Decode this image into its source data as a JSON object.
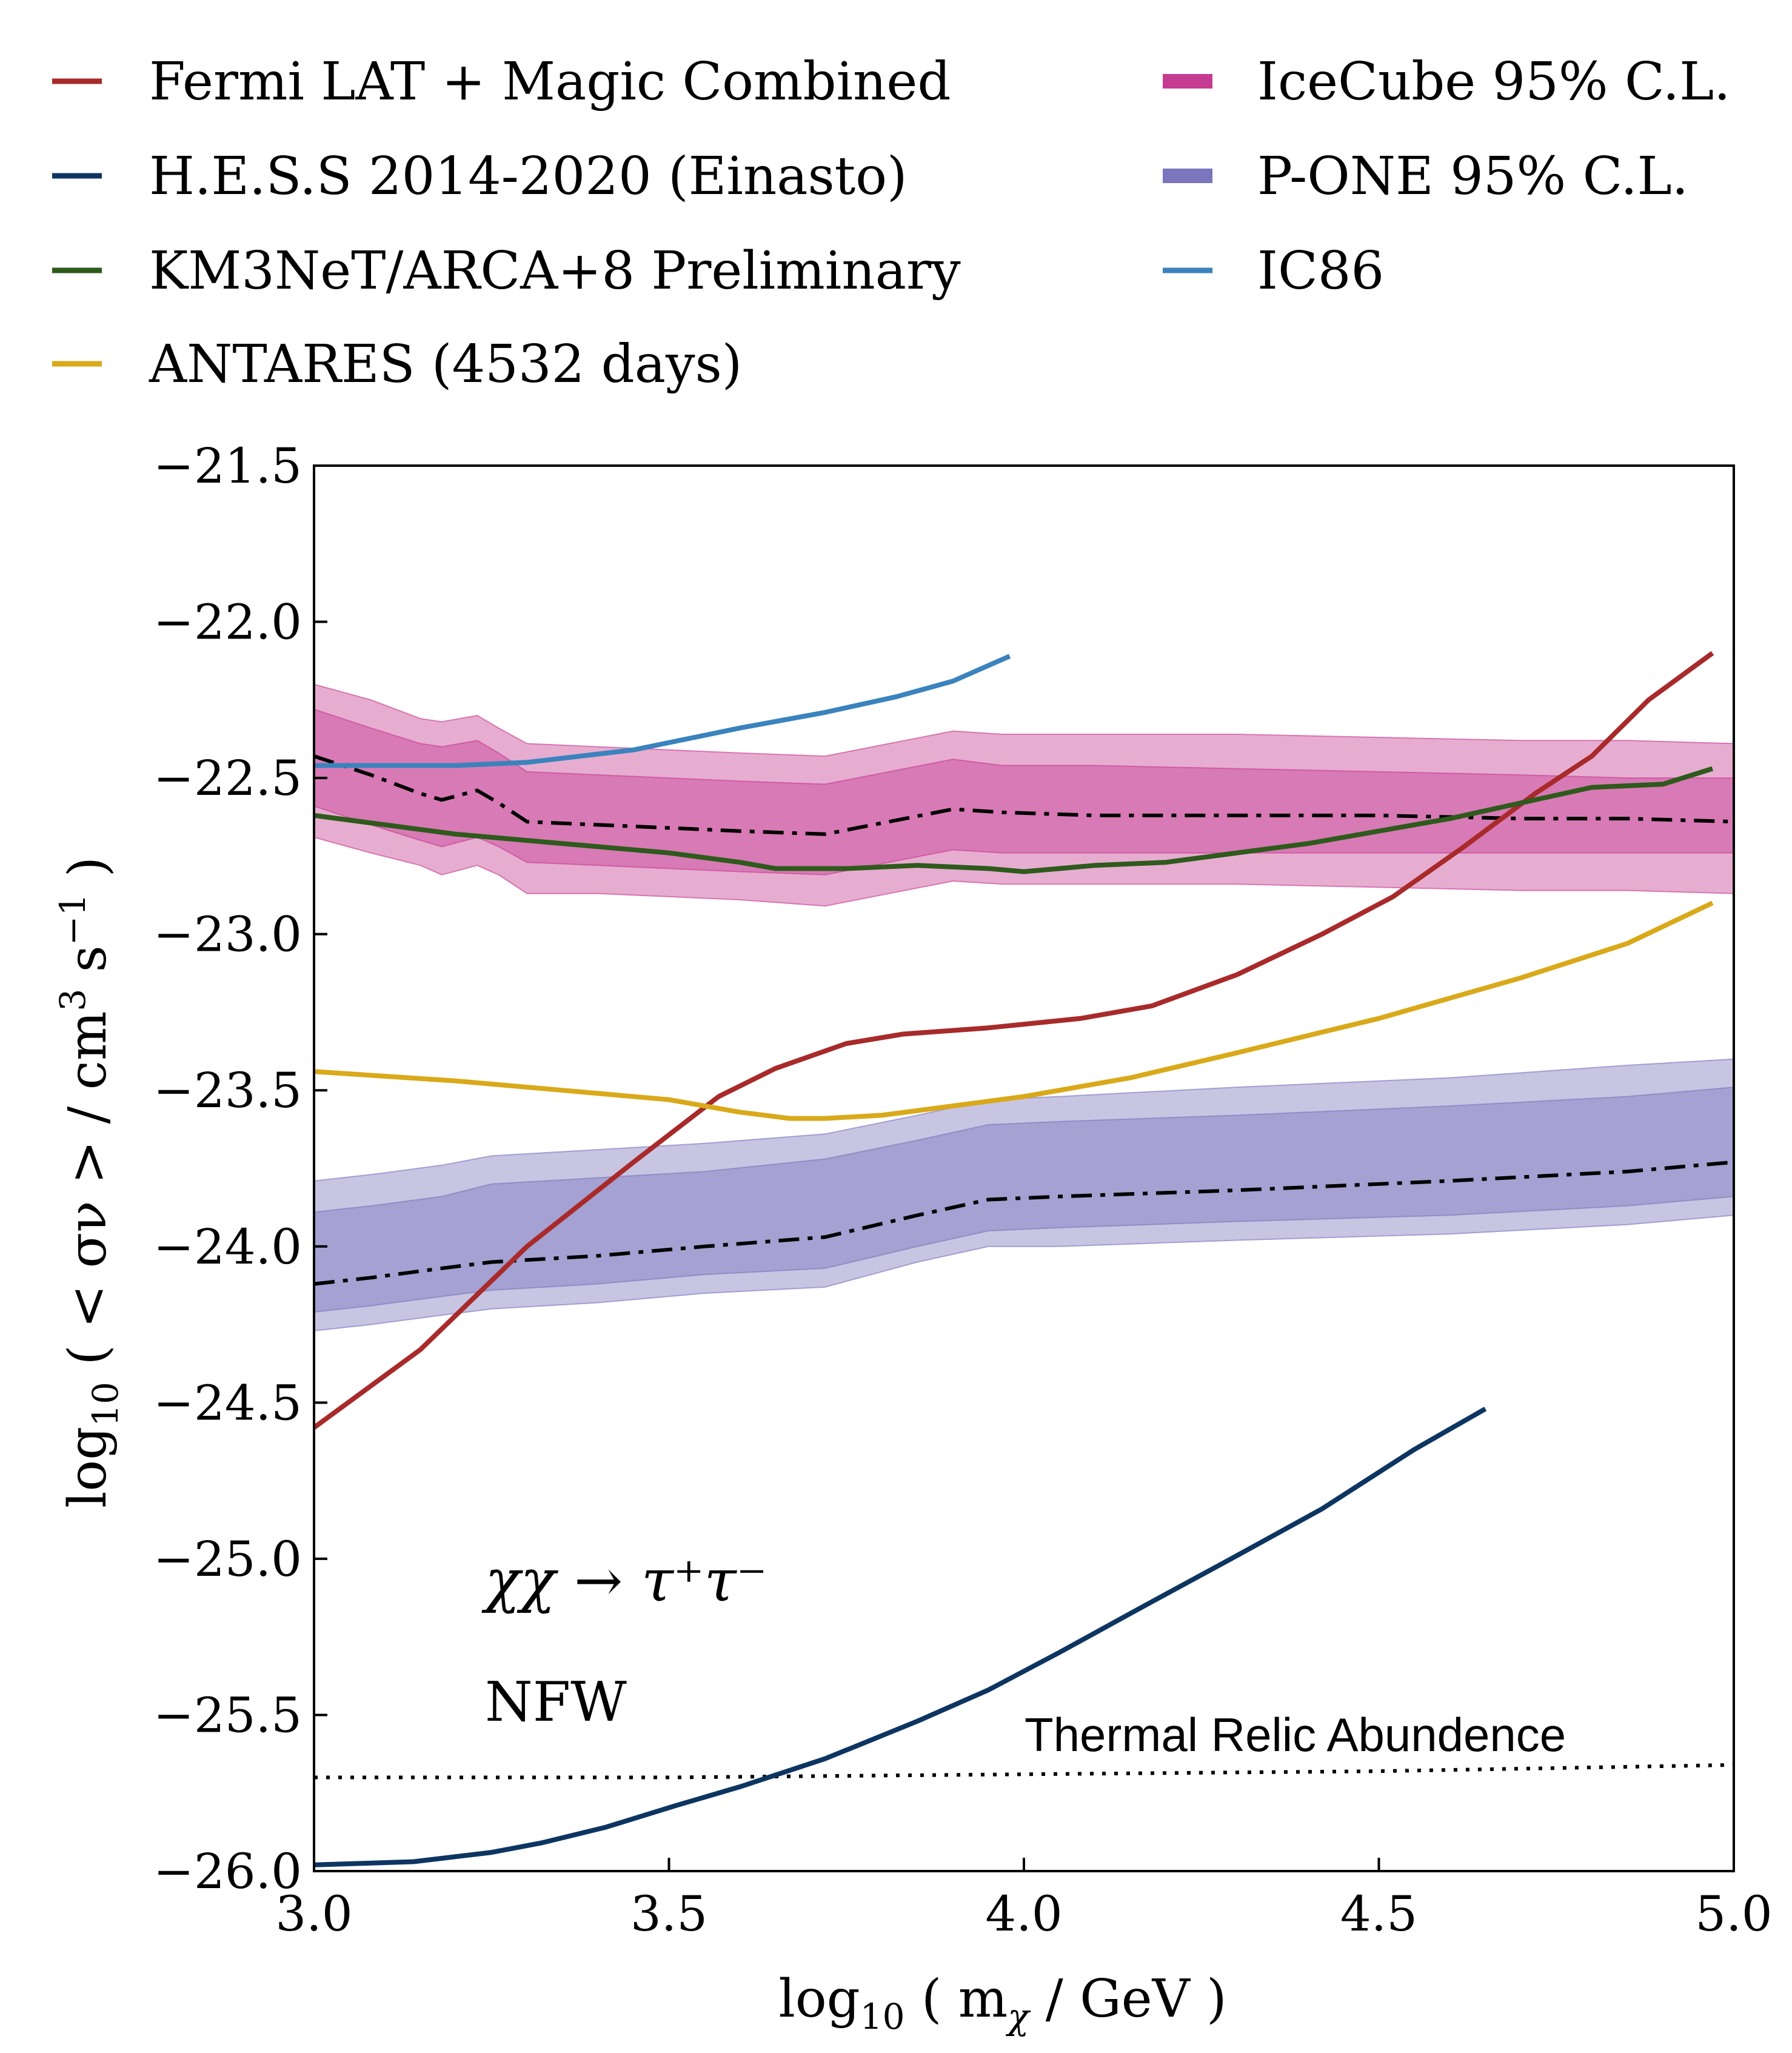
{
  "chart_data": {
    "type": "line",
    "xlabel": "log",
    "xlabel_sub": "10",
    "xlabel_rest": "( m",
    "xlabel_chi": "χ",
    "xlabel_end": "/ GeV )",
    "ylabel": "log",
    "ylabel_sub": "10",
    "ylabel_rest": "( < σν > / cm",
    "ylabel_sup": "3",
    "ylabel_mid": " s",
    "ylabel_sup2": "−1",
    "ylabel_end": " )",
    "xlim": [
      3.0,
      5.0
    ],
    "ylim": [
      -26.0,
      -21.5
    ],
    "xticks": [
      "3.0",
      "3.5",
      "4.0",
      "4.5",
      "5.0"
    ],
    "xtick_values": [
      3.0,
      3.5,
      4.0,
      4.5,
      5.0
    ],
    "yticks": [
      "−21.5",
      "−22.0",
      "−22.5",
      "−23.0",
      "−23.5",
      "−24.0",
      "−24.5",
      "−25.0",
      "−25.5",
      "−26.0"
    ],
    "ytick_values": [
      -21.5,
      -22.0,
      -22.5,
      -23.0,
      -23.5,
      -24.0,
      -24.5,
      -25.0,
      -25.5,
      -26.0
    ],
    "annotations": {
      "channel": "χχ → τ⁺τ⁻",
      "profile": "NFW",
      "thermal_relic": "Thermal Relic Abundence"
    },
    "legend": [
      {
        "label": "Fermi LAT + Magic Combined",
        "color": "#a82a2a",
        "kind": "line"
      },
      {
        "label": "H.E.S.S 2014-2020 (Einasto)",
        "color": "#0d3561",
        "kind": "line"
      },
      {
        "label": "KM3NeT/ARCA+8 Preliminary",
        "color": "#2e5a1c",
        "kind": "line"
      },
      {
        "label": "ANTARES (4532 days)",
        "color": "#d9a91a",
        "kind": "line"
      },
      {
        "label": "IceCube 95% C.L.",
        "color": "#c63b92",
        "kind": "patch"
      },
      {
        "label": "P-ONE 95% C.L.",
        "color": "#7b75bd",
        "kind": "patch"
      },
      {
        "label": "IC86",
        "color": "#3a83bd",
        "kind": "line"
      }
    ],
    "series": [
      {
        "name": "Fermi LAT + Magic Combined",
        "color": "#a82a2a",
        "x": [
          3.0,
          3.15,
          3.3,
          3.45,
          3.57,
          3.65,
          3.75,
          3.83,
          3.95,
          4.08,
          4.18,
          4.3,
          4.42,
          4.52,
          4.62,
          4.72,
          4.8,
          4.88,
          4.97
        ],
        "y": [
          -24.58,
          -24.33,
          -24.0,
          -23.73,
          -23.52,
          -23.43,
          -23.35,
          -23.32,
          -23.3,
          -23.27,
          -23.23,
          -23.13,
          -23.0,
          -22.88,
          -22.72,
          -22.55,
          -22.43,
          -22.25,
          -22.1
        ]
      },
      {
        "name": "H.E.S.S 2014-2020 (Einasto)",
        "color": "#0d3561",
        "x": [
          3.0,
          3.14,
          3.25,
          3.32,
          3.41,
          3.51,
          3.6,
          3.72,
          3.85,
          3.95,
          4.05,
          4.17,
          4.3,
          4.42,
          4.55,
          4.65
        ],
        "y": [
          -25.98,
          -25.97,
          -25.94,
          -25.91,
          -25.86,
          -25.79,
          -25.73,
          -25.64,
          -25.52,
          -25.42,
          -25.3,
          -25.15,
          -24.99,
          -24.84,
          -24.65,
          -24.52
        ]
      },
      {
        "name": "KM3NeT/ARCA+8 Preliminary",
        "color": "#2e5a1c",
        "x": [
          3.0,
          3.1,
          3.2,
          3.3,
          3.4,
          3.5,
          3.6,
          3.65,
          3.75,
          3.85,
          3.95,
          4.0,
          4.1,
          4.2,
          4.3,
          4.4,
          4.5,
          4.6,
          4.7,
          4.8,
          4.9,
          4.97
        ],
        "y": [
          -22.62,
          -22.65,
          -22.68,
          -22.7,
          -22.72,
          -22.74,
          -22.77,
          -22.79,
          -22.79,
          -22.78,
          -22.79,
          -22.8,
          -22.78,
          -22.77,
          -22.74,
          -22.71,
          -22.67,
          -22.63,
          -22.58,
          -22.53,
          -22.52,
          -22.47
        ]
      },
      {
        "name": "ANTARES (4532 days)",
        "color": "#d9a91a",
        "x": [
          3.0,
          3.2,
          3.35,
          3.5,
          3.6,
          3.67,
          3.72,
          3.8,
          3.9,
          4.0,
          4.15,
          4.3,
          4.5,
          4.7,
          4.85,
          4.97
        ],
        "y": [
          -23.44,
          -23.47,
          -23.5,
          -23.53,
          -23.57,
          -23.59,
          -23.59,
          -23.58,
          -23.55,
          -23.52,
          -23.46,
          -23.38,
          -23.27,
          -23.14,
          -23.03,
          -22.9
        ]
      },
      {
        "name": "IC86",
        "color": "#3a83bd",
        "x": [
          3.0,
          3.1,
          3.2,
          3.3,
          3.45,
          3.6,
          3.72,
          3.82,
          3.9,
          3.98
        ],
        "y": [
          -22.46,
          -22.46,
          -22.46,
          -22.45,
          -22.41,
          -22.34,
          -22.29,
          -22.24,
          -22.19,
          -22.11
        ]
      }
    ],
    "bands": [
      {
        "name": "IceCube 95% C.L.",
        "color": "#c63b92",
        "x": [
          3.0,
          3.08,
          3.15,
          3.18,
          3.23,
          3.26,
          3.3,
          3.4,
          3.5,
          3.6,
          3.72,
          3.81,
          3.9,
          3.97,
          4.1,
          4.3,
          4.5,
          4.7,
          4.85,
          5.0
        ],
        "median": [
          -22.43,
          -22.49,
          -22.55,
          -22.57,
          -22.54,
          -22.58,
          -22.64,
          -22.65,
          -22.66,
          -22.67,
          -22.68,
          -22.64,
          -22.6,
          -22.61,
          -22.62,
          -22.62,
          -22.62,
          -22.63,
          -22.63,
          -22.64
        ],
        "inner_low": [
          -22.59,
          -22.65,
          -22.7,
          -22.72,
          -22.69,
          -22.72,
          -22.77,
          -22.78,
          -22.79,
          -22.8,
          -22.81,
          -22.77,
          -22.73,
          -22.74,
          -22.74,
          -22.74,
          -22.74,
          -22.74,
          -22.74,
          -22.74
        ],
        "inner_high": [
          -22.28,
          -22.34,
          -22.39,
          -22.4,
          -22.38,
          -22.42,
          -22.48,
          -22.49,
          -22.5,
          -22.51,
          -22.52,
          -22.48,
          -22.44,
          -22.46,
          -22.46,
          -22.47,
          -22.48,
          -22.49,
          -22.5,
          -22.5
        ],
        "outer_low": [
          -22.69,
          -22.74,
          -22.78,
          -22.81,
          -22.78,
          -22.81,
          -22.87,
          -22.87,
          -22.88,
          -22.89,
          -22.91,
          -22.87,
          -22.83,
          -22.84,
          -22.84,
          -22.84,
          -22.85,
          -22.86,
          -22.86,
          -22.87
        ],
        "outer_high": [
          -22.2,
          -22.25,
          -22.31,
          -22.32,
          -22.3,
          -22.34,
          -22.39,
          -22.4,
          -22.41,
          -22.42,
          -22.43,
          -22.39,
          -22.35,
          -22.36,
          -22.36,
          -22.36,
          -22.37,
          -22.38,
          -22.38,
          -22.39
        ]
      },
      {
        "name": "P-ONE 95% C.L.",
        "color": "#7b75bd",
        "x": [
          3.0,
          3.08,
          3.18,
          3.25,
          3.4,
          3.55,
          3.72,
          3.85,
          3.95,
          4.05,
          4.3,
          4.6,
          4.85,
          5.0
        ],
        "median": [
          -24.12,
          -24.1,
          -24.07,
          -24.05,
          -24.03,
          -24.0,
          -23.97,
          -23.9,
          -23.85,
          -23.84,
          -23.82,
          -23.79,
          -23.76,
          -23.73
        ],
        "inner_low": [
          -24.21,
          -24.19,
          -24.16,
          -24.14,
          -24.12,
          -24.09,
          -24.07,
          -24.0,
          -23.95,
          -23.94,
          -23.92,
          -23.9,
          -23.87,
          -23.84
        ],
        "inner_high": [
          -23.89,
          -23.87,
          -23.84,
          -23.8,
          -23.78,
          -23.76,
          -23.72,
          -23.66,
          -23.61,
          -23.6,
          -23.58,
          -23.55,
          -23.52,
          -23.49
        ],
        "outer_low": [
          -24.27,
          -24.25,
          -24.22,
          -24.2,
          -24.18,
          -24.15,
          -24.13,
          -24.05,
          -24.0,
          -24.0,
          -23.98,
          -23.96,
          -23.93,
          -23.9
        ],
        "outer_high": [
          -23.79,
          -23.77,
          -23.74,
          -23.71,
          -23.69,
          -23.67,
          -23.64,
          -23.58,
          -23.53,
          -23.52,
          -23.49,
          -23.46,
          -23.42,
          -23.4
        ]
      }
    ],
    "thermal_relic": {
      "x": [
        3.0,
        3.5,
        4.0,
        4.5,
        5.0
      ],
      "y": [
        -25.7,
        -25.7,
        -25.69,
        -25.68,
        -25.66
      ]
    }
  }
}
